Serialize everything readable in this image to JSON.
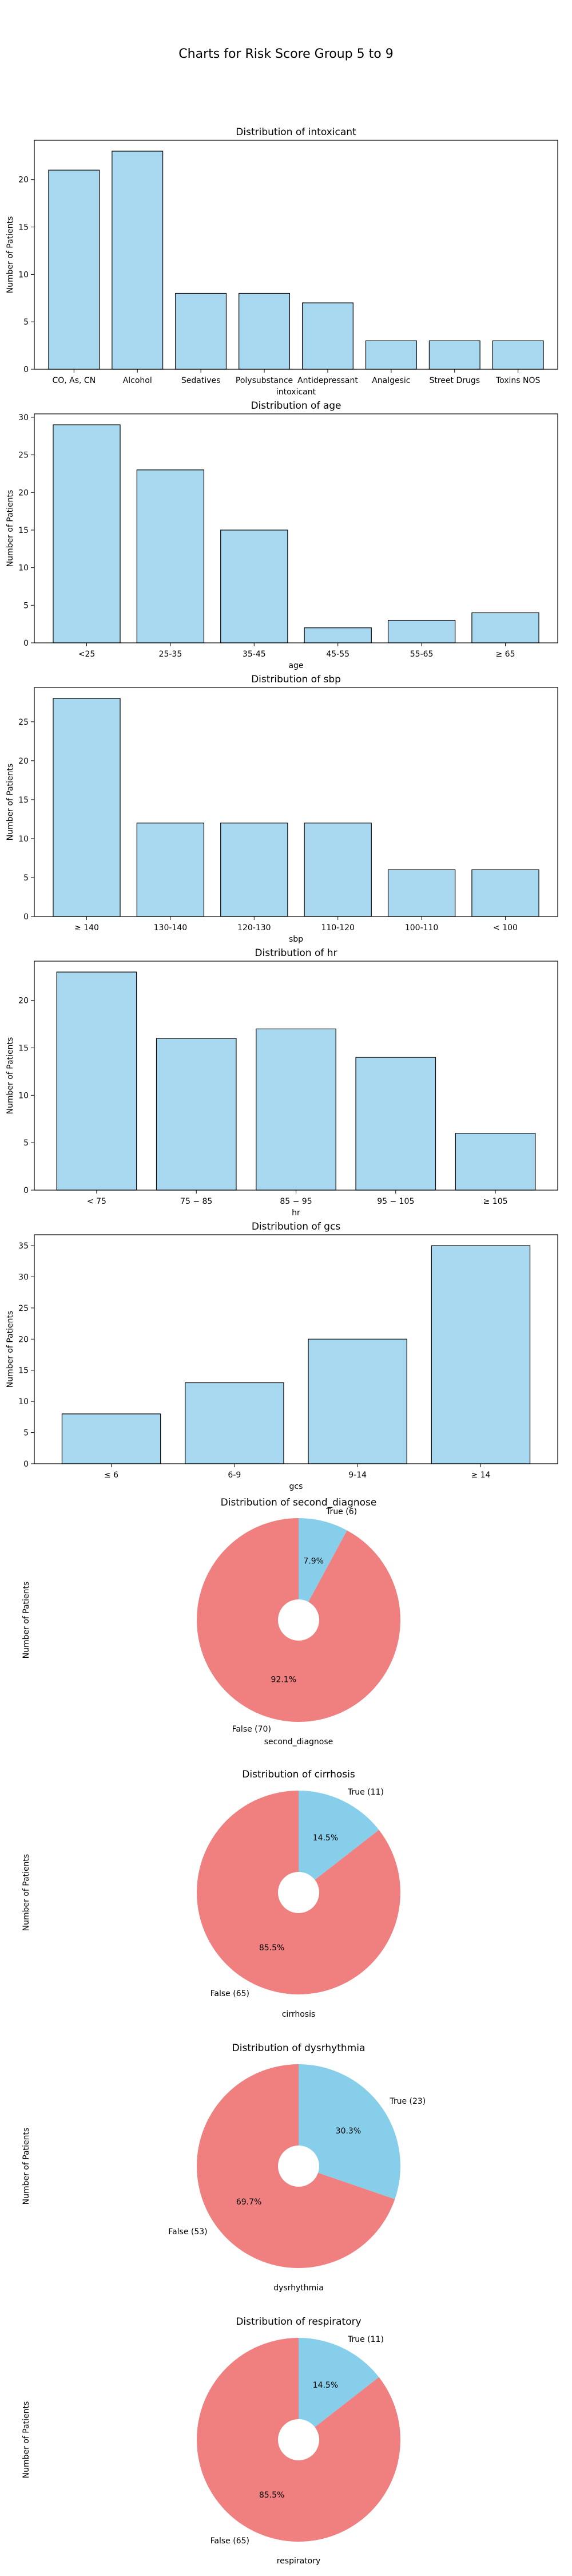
{
  "figure": {
    "title": "Charts for Risk Score Group 5 to 9"
  },
  "colors": {
    "bar": "#a8d8ef",
    "pie_true": "#87ceeb",
    "pie_false": "#f08080",
    "edge": "#000000"
  },
  "chart_data": [
    {
      "type": "bar",
      "title": "Distribution of intoxicant",
      "xlabel": "intoxicant",
      "ylabel": "Number of Patients",
      "categories": [
        "CO, As, CN",
        "Alcohol",
        "Sedatives",
        "Polysubstance",
        "Antidepressant",
        "Analgesic",
        "Street Drugs",
        "Toxins NOS"
      ],
      "values": [
        21,
        23,
        8,
        8,
        7,
        3,
        3,
        3
      ],
      "ylim": [
        0,
        24.15
      ],
      "yticks": [
        0,
        5,
        10,
        15,
        20
      ]
    },
    {
      "type": "bar",
      "title": "Distribution of age",
      "xlabel": "age",
      "ylabel": "Number of Patients",
      "categories": [
        "<25",
        "25-35",
        "35-45",
        "45-55",
        "55-65",
        "≥ 65"
      ],
      "values": [
        29,
        23,
        15,
        2,
        3,
        4
      ],
      "ylim": [
        0,
        30.45
      ],
      "yticks": [
        0,
        5,
        10,
        15,
        20,
        25,
        30
      ]
    },
    {
      "type": "bar",
      "title": "Distribution of sbp",
      "xlabel": "sbp",
      "ylabel": "Number of Patients",
      "categories": [
        "≥ 140",
        "130-140",
        "120-130",
        "110-120",
        "100-110",
        "< 100"
      ],
      "values": [
        28,
        12,
        12,
        12,
        6,
        6
      ],
      "ylim": [
        0,
        29.4
      ],
      "yticks": [
        0,
        5,
        10,
        15,
        20,
        25
      ]
    },
    {
      "type": "bar",
      "title": "Distribution of hr",
      "xlabel": "hr",
      "ylabel": "Number of Patients",
      "categories": [
        "< 75",
        "75 − 85",
        "85 − 95",
        "95 − 105",
        "≥ 105"
      ],
      "values": [
        23,
        16,
        17,
        14,
        6
      ],
      "ylim": [
        0,
        24.15
      ],
      "yticks": [
        0,
        5,
        10,
        15,
        20
      ]
    },
    {
      "type": "bar",
      "title": "Distribution of gcs",
      "xlabel": "gcs",
      "ylabel": "Number of Patients",
      "categories": [
        "≤ 6",
        "6-9",
        "9-14",
        "≥ 14"
      ],
      "values": [
        8,
        13,
        20,
        35
      ],
      "ylim": [
        0,
        36.75
      ],
      "yticks": [
        0,
        5,
        10,
        15,
        20,
        25,
        30,
        35
      ]
    },
    {
      "type": "pie",
      "title": "Distribution of second_diagnose",
      "xlabel": "second_diagnose",
      "ylabel": "Number of Patients",
      "slices": [
        {
          "label": "True (6)",
          "value": 6,
          "pct": "7.9%"
        },
        {
          "label": "False (70)",
          "value": 70,
          "pct": "92.1%"
        }
      ]
    },
    {
      "type": "pie",
      "title": "Distribution of cirrhosis",
      "xlabel": "cirrhosis",
      "ylabel": "Number of Patients",
      "slices": [
        {
          "label": "True (11)",
          "value": 11,
          "pct": "14.5%"
        },
        {
          "label": "False (65)",
          "value": 65,
          "pct": "85.5%"
        }
      ]
    },
    {
      "type": "pie",
      "title": "Distribution of dysrhythmia",
      "xlabel": "dysrhythmia",
      "ylabel": "Number of Patients",
      "slices": [
        {
          "label": "True (23)",
          "value": 23,
          "pct": "30.3%"
        },
        {
          "label": "False (53)",
          "value": 53,
          "pct": "69.7%"
        }
      ]
    },
    {
      "type": "pie",
      "title": "Distribution of respiratory",
      "xlabel": "respiratory",
      "ylabel": "Number of Patients",
      "slices": [
        {
          "label": "True (11)",
          "value": 11,
          "pct": "14.5%"
        },
        {
          "label": "False (65)",
          "value": 65,
          "pct": "85.5%"
        }
      ]
    }
  ]
}
